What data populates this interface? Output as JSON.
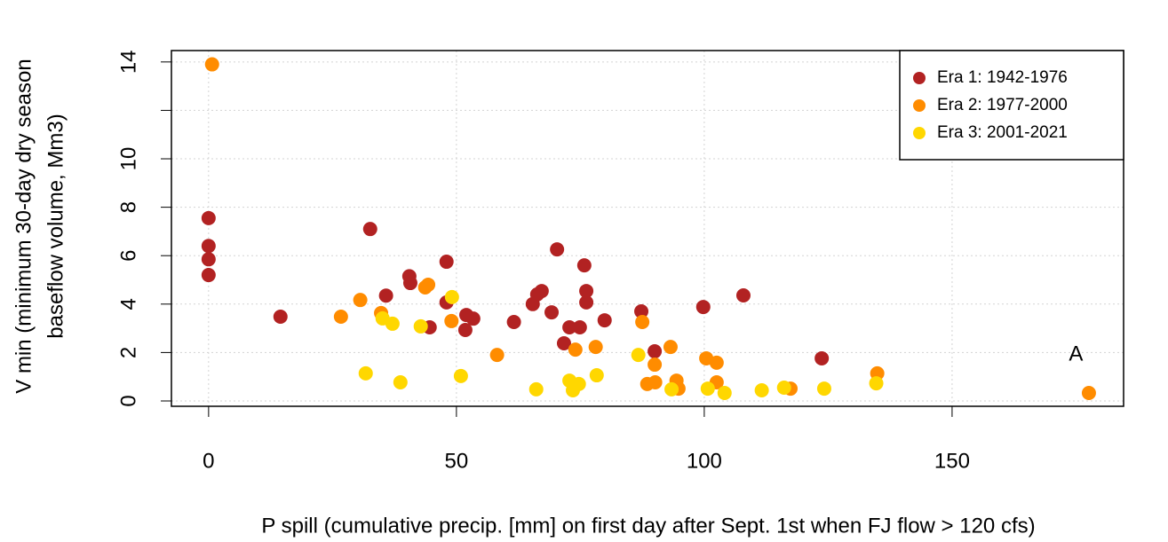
{
  "chart_data": {
    "type": "scatter",
    "xlabel": "P spill (cumulative precip. [mm] on first day after Sept. 1st when FJ flow > 120 cfs)",
    "ylabel": [
      "V min (minimum 30-day dry season",
      "baseflow volume, Mm3)"
    ],
    "annotations": [
      {
        "text": "A",
        "x": 175,
        "y": 1.9
      }
    ],
    "xlim": [
      -7.5,
      184.6
    ],
    "ylim": [
      -0.22,
      14.47
    ],
    "xticks": [
      0,
      50,
      100,
      150
    ],
    "yticks": [
      0,
      2,
      4,
      6,
      8,
      10,
      {
        "value": 12,
        "label": null
      },
      14
    ],
    "grid": true,
    "legend": "top-right",
    "series": [
      {
        "name": "Era 1: 1942-1976",
        "color": "#b22222",
        "x": [
          0,
          0,
          0,
          0,
          14.5,
          32.6,
          35.8,
          40.5,
          40.7,
          44.6,
          48,
          48,
          52,
          51.8,
          53.4,
          61.6,
          65.4,
          66.3,
          67.2,
          69.2,
          70.3,
          71.7,
          72.8,
          74.9,
          75.8,
          76.2,
          76.2,
          79.9,
          87.3,
          90,
          99.8,
          107.9,
          123.7
        ],
        "y": [
          7.55,
          6.4,
          5.85,
          5.2,
          3.48,
          7.1,
          4.35,
          5.15,
          4.87,
          3.04,
          5.75,
          4.07,
          3.55,
          2.93,
          3.4,
          3.26,
          4.0,
          4.4,
          4.54,
          3.66,
          6.26,
          2.38,
          3.04,
          3.04,
          5.6,
          4.54,
          4.07,
          3.33,
          3.7,
          2.05,
          3.88,
          4.36,
          1.76
        ]
      },
      {
        "name": "Era 2: 1977-2000",
        "color": "#ff8c00",
        "x": [
          0.7,
          26.7,
          30.6,
          34.8,
          43.7,
          44.3,
          49,
          58.2,
          74,
          78.1,
          87.5,
          88.5,
          90,
          90.1,
          93.2,
          94.4,
          94.8,
          100.4,
          102.5,
          102.5,
          117.4,
          134.9,
          177.6
        ],
        "y": [
          13.9,
          3.48,
          4.17,
          3.63,
          4.69,
          4.8,
          3.3,
          1.9,
          2.12,
          2.23,
          3.26,
          0.7,
          1.5,
          0.77,
          2.23,
          0.84,
          0.51,
          1.76,
          1.58,
          0.77,
          0.51,
          1.14,
          0.33
        ]
      },
      {
        "name": "Era 3: 2001-2021",
        "color": "#ffd700",
        "x": [
          31.7,
          35.1,
          37.1,
          38.7,
          42.8,
          49.1,
          50.9,
          66.1,
          72.8,
          73.5,
          74.7,
          78.3,
          86.7,
          93.4,
          100.7,
          104.1,
          111.6,
          116.1,
          124.2,
          134.7
        ],
        "y": [
          1.14,
          3.41,
          3.19,
          0.77,
          3.08,
          4.29,
          1.03,
          0.48,
          0.84,
          0.44,
          0.7,
          1.06,
          1.9,
          0.48,
          0.51,
          0.33,
          0.44,
          0.55,
          0.51,
          0.73
        ]
      }
    ]
  }
}
